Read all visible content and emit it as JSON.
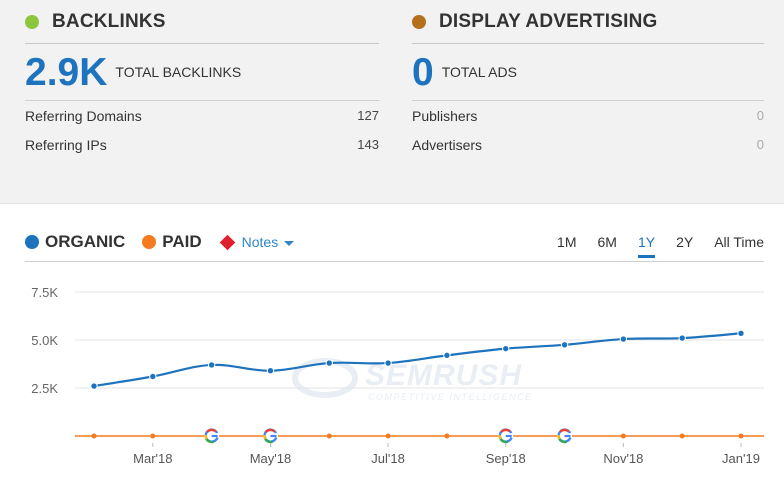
{
  "backlinks": {
    "title": "BACKLINKS",
    "dot_color": "#8cc63f",
    "total_value": "2.9K",
    "total_label": "TOTAL BACKLINKS",
    "rows": [
      {
        "label": "Referring Domains",
        "value": "127"
      },
      {
        "label": "Referring IPs",
        "value": "143"
      }
    ]
  },
  "display_advertising": {
    "title": "DISPLAY ADVERTISING",
    "dot_color": "#b5701c",
    "total_value": "0",
    "total_label": "TOTAL ADS",
    "rows": [
      {
        "label": "Publishers",
        "value": "0"
      },
      {
        "label": "Advertisers",
        "value": "0"
      }
    ]
  },
  "legend": {
    "organic": {
      "label": "ORGANIC",
      "color": "#1e73be"
    },
    "paid": {
      "label": "PAID",
      "color": "#f47b20"
    },
    "notes": {
      "label": "Notes",
      "color": "#e0212b"
    }
  },
  "periods": {
    "items": [
      "1M",
      "6M",
      "1Y",
      "2Y",
      "All Time"
    ],
    "active": "1Y"
  },
  "watermark": {
    "name": "SEMRUSH",
    "tagline": "COMPETITIVE INTELLIGENCE"
  },
  "chart_data": {
    "type": "line",
    "y_ticks": [
      "7.5K",
      "5.0K",
      "2.5K"
    ],
    "y_tick_values": [
      7500,
      5000,
      2500
    ],
    "ylim": [
      0,
      7500
    ],
    "x_tick_labels": [
      "Mar'18",
      "May'18",
      "Jul'18",
      "Sep'18",
      "Nov'18",
      "Jan'19"
    ],
    "grid": true,
    "series": [
      {
        "name": "ORGANIC",
        "color": "#1e73be",
        "values": [
          2600,
          3100,
          3700,
          3400,
          3800,
          3800,
          4200,
          4550,
          4750,
          5050,
          5100,
          5350
        ]
      },
      {
        "name": "PAID",
        "color": "#f47b20",
        "values": [
          0,
          0,
          0,
          0,
          0,
          0,
          0,
          0,
          0,
          0,
          0,
          0
        ]
      }
    ],
    "google_update_markers": [
      2,
      3,
      7,
      8
    ]
  }
}
